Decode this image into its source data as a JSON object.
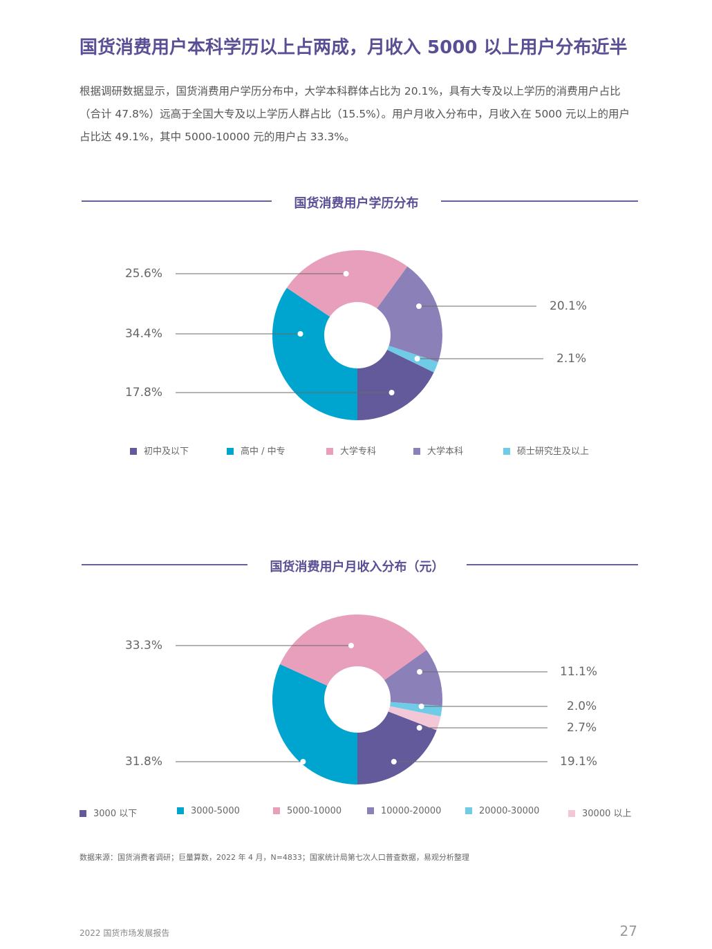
{
  "headline": "国货消费用户本科学历以上占两成，月收入 5000 以上用户分布近半",
  "intro": "根据调研数据显示，国货消费用户学历分布中，大学本科群体占比为 20.1%，具有大专及以上学历的消费用户占比（合计 47.8%）远高于全国大专及以上学历人群占比（15.5%）。用户月收入分布中，月收入在 5000 元以上的用户占比达 49.1%，其中 5000-10000 元的用户占 33.3%。",
  "chart_data": [
    {
      "type": "pie",
      "title": "国货消费用户学历分布",
      "legend_position": "bottom",
      "categories": [
        "初中及以下",
        "高中 / 中专",
        "大学专科",
        "大学本科",
        "硕士研究生及以上"
      ],
      "values": [
        17.8,
        34.4,
        25.6,
        20.1,
        2.1
      ],
      "value_labels": [
        "17.8%",
        "34.4%",
        "25.6%",
        "20.1%",
        "2.1%"
      ],
      "colors": [
        "#625a9a",
        "#00a5cf",
        "#e89fbb",
        "#8b80b8",
        "#6fcbe6"
      ]
    },
    {
      "type": "pie",
      "title": "国货消费用户月收入分布（元）",
      "legend_position": "bottom",
      "categories": [
        "3000 以下",
        "3000-5000",
        "5000-10000",
        "10000-20000",
        "20000-30000",
        "30000 以上"
      ],
      "values": [
        19.1,
        31.8,
        33.3,
        11.1,
        2.0,
        2.7
      ],
      "value_labels": [
        "19.1%",
        "31.8%",
        "33.3%",
        "11.1%",
        "2.0%",
        "2.7%"
      ],
      "colors": [
        "#625a9a",
        "#00a5cf",
        "#e89fbb",
        "#8b80b8",
        "#6fcbe6",
        "#f2c8d8"
      ]
    }
  ],
  "source": "数据来源：国货消费者调研；巨量算数，2022 年 4 月，N=4833；国家统计局第七次人口普查数据，易观分析整理",
  "footer": {
    "report": "2022 国货市场发展报告",
    "page": "27"
  }
}
